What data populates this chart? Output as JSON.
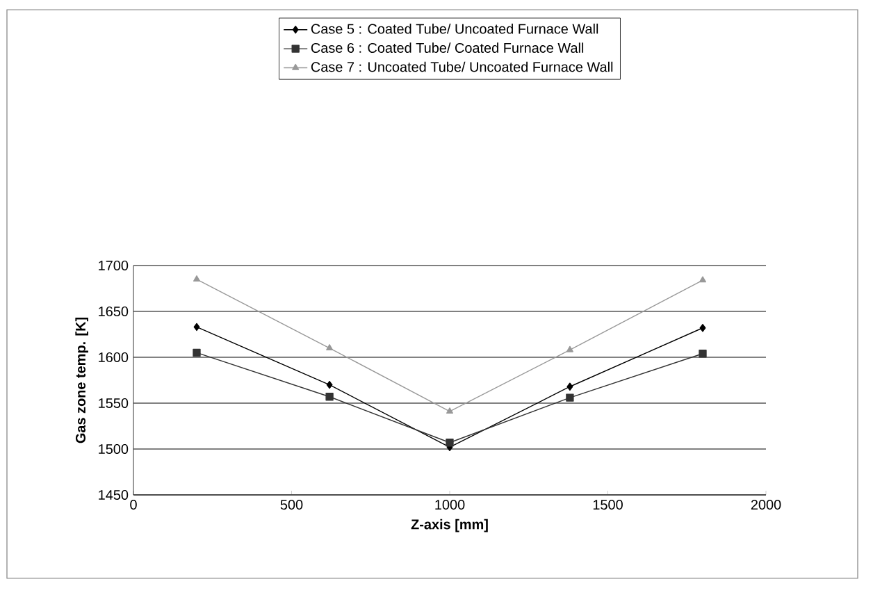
{
  "chart_data": {
    "type": "line",
    "xlabel": "Z-axis [mm]",
    "ylabel": "Gas zone temp. [K]",
    "xlim": [
      0,
      2000
    ],
    "xticks": [
      0,
      500,
      1000,
      1500,
      2000
    ],
    "ylim": [
      1450,
      1700
    ],
    "yticks": [
      1450,
      1500,
      1550,
      1600,
      1650,
      1700
    ],
    "grid": "y",
    "legend": "top",
    "line_style": "solid",
    "series": [
      {
        "name": "Case 5 : Coated Tube/ Uncoated Furnace Wall",
        "color": "#000000",
        "marker": "diamond",
        "x": [
          200,
          620,
          1000,
          1380,
          1800
        ],
        "values": [
          1633,
          1570,
          1502,
          1568,
          1632
        ]
      },
      {
        "name": "Case 6 : Coated Tube/ Coated Furnace Wall",
        "color": "#333333",
        "marker": "square",
        "x": [
          200,
          620,
          1000,
          1380,
          1800
        ],
        "values": [
          1605,
          1557,
          1507,
          1556,
          1604
        ]
      },
      {
        "name": "Case 7 : Uncoated Tube/ Uncoated Furnace Wall",
        "color": "#999999",
        "marker": "triangle",
        "x": [
          200,
          620,
          1000,
          1380,
          1800
        ],
        "values": [
          1685,
          1610,
          1541,
          1608,
          1684
        ]
      }
    ]
  }
}
